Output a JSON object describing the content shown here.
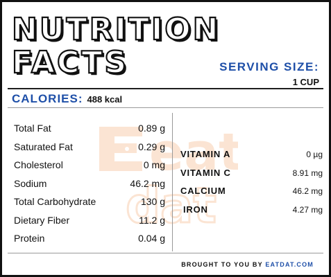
{
  "title": {
    "line1": "NUTRITION",
    "line2": "FACTS"
  },
  "serving": {
    "label": "SERVING SIZE:",
    "value": "1 CUP"
  },
  "calories": {
    "label": "CALORIES:",
    "value": "488 kcal"
  },
  "watermark": {
    "line1": "eat",
    "line2": "dat"
  },
  "nutrients": [
    {
      "name": "Total Fat",
      "value": "0.89 g"
    },
    {
      "name": "Saturated Fat",
      "value": "0.29 g"
    },
    {
      "name": "Cholesterol",
      "value": "0 mg"
    },
    {
      "name": "Sodium",
      "value": "46.2 mg"
    },
    {
      "name": "Total Carbohydrate",
      "value": "130 g"
    },
    {
      "name": "Dietary Fiber",
      "value": "11.2 g"
    },
    {
      "name": "Protein",
      "value": "0.04 g"
    }
  ],
  "vitamins": [
    {
      "name": "VITAMIN A",
      "value": "0 µg"
    },
    {
      "name": "VITAMIN C",
      "value": "8.91 mg"
    },
    {
      "name": "CALCIUM",
      "value": "46.2 mg"
    },
    {
      "name": "IRON",
      "value": "4.27 mg"
    }
  ],
  "footer": {
    "prefix": "BROUGHT TO YOU BY",
    "brand": "EATDAT.COM"
  },
  "colors": {
    "accent": "#1e4fa8",
    "watermark": "#f08a3c",
    "border": "#111111"
  }
}
